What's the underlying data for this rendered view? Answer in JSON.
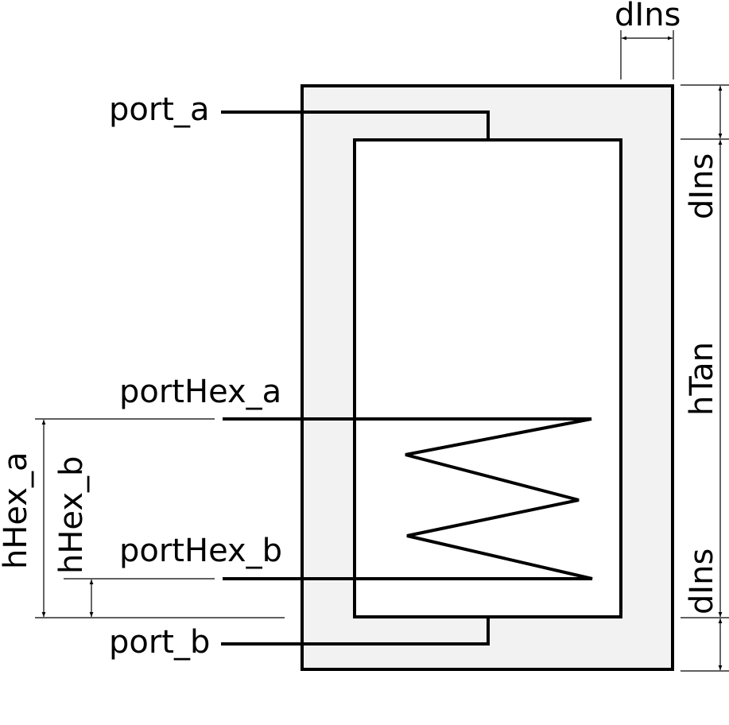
{
  "labels": {
    "port_a": "port_a",
    "port_b": "port_b",
    "porthex_a": "portHex_a",
    "porthex_b": "portHex_b",
    "dins_top": "dIns",
    "dins_right_upper": "dIns",
    "dins_right_lower": "dIns",
    "htan": "hTan",
    "hhex_a": "hHex_a",
    "hhex_b": "hHex_b"
  },
  "colors": {
    "insulation_fill": "#f2f2f2",
    "tank_fill": "#ffffff",
    "stroke": "#000000"
  }
}
